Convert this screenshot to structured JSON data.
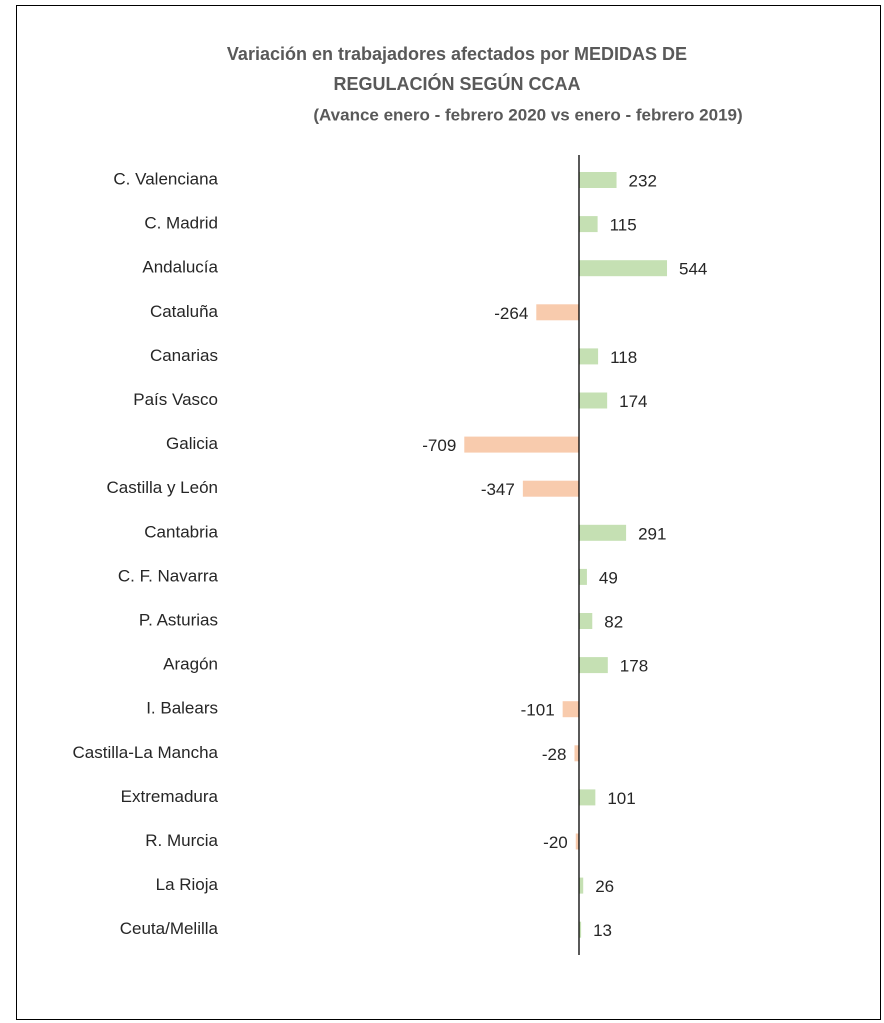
{
  "chart_data": {
    "type": "bar",
    "orientation": "horizontal",
    "title": [
      "Variación en trabajadores afectados por MEDIDAS DE",
      "REGULACIÓN SEGÚN CCAA"
    ],
    "subtitle": "(Avance enero - febrero 2020 vs enero - febrero 2019)",
    "categories": [
      "C. Valenciana",
      "C. Madrid",
      "Andalucía",
      "Cataluña",
      "Canarias",
      "País Vasco",
      "Galicia",
      "Castilla y León",
      "Cantabria",
      "C. F. Navarra",
      "P. Asturias",
      "Aragón",
      "I. Balears",
      "Castilla-La Mancha",
      "Extremadura",
      "R. Murcia",
      "La Rioja",
      "Ceuta/Melilla"
    ],
    "values": [
      232,
      115,
      544,
      -264,
      118,
      174,
      -709,
      -347,
      291,
      49,
      82,
      178,
      -101,
      -28,
      101,
      -20,
      26,
      13
    ],
    "colors": {
      "positive": "#c5e0b3",
      "negative": "#f8cbad"
    }
  }
}
